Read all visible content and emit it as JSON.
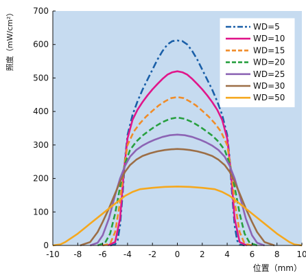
{
  "chart_data": {
    "type": "line",
    "title": "",
    "xlabel": "位置（mm）",
    "ylabel": "照度（mW/cm²）",
    "xlim": [
      -10,
      10
    ],
    "ylim": [
      0,
      700
    ],
    "xticks": [
      -10,
      -8,
      -6,
      -4,
      -2,
      0,
      2,
      4,
      6,
      8,
      10
    ],
    "yticks": [
      0,
      100,
      200,
      300,
      400,
      500,
      600,
      700
    ],
    "grid": false,
    "background": "#c6dbf0",
    "legend_position": "top-right",
    "series": [
      {
        "name": "WD=5",
        "color": "#1a5fa8",
        "dash": "dashdot",
        "x": [
          -5.4,
          -5,
          -4.8,
          -4.6,
          -4.4,
          -4.2,
          -4,
          -3.6,
          -3.2,
          -2.8,
          -2.4,
          -2,
          -1.6,
          -1.2,
          -0.8,
          -0.4,
          0,
          0.4,
          0.8,
          1.2,
          1.6,
          2,
          2.4,
          2.8,
          3.2,
          3.6,
          4,
          4.2,
          4.4,
          4.6,
          4.8,
          5,
          5.4
        ],
        "y": [
          0,
          3,
          15,
          60,
          150,
          260,
          330,
          390,
          430,
          465,
          495,
          525,
          555,
          580,
          600,
          610,
          612,
          610,
          600,
          580,
          555,
          525,
          495,
          465,
          430,
          390,
          330,
          260,
          150,
          60,
          15,
          3,
          0
        ]
      },
      {
        "name": "WD=10",
        "color": "#e0168a",
        "dash": "solid",
        "x": [
          -5.6,
          -5,
          -4.6,
          -4.3,
          -4,
          -3.6,
          -3.2,
          -2.8,
          -2.4,
          -2,
          -1.6,
          -1.2,
          -0.8,
          -0.4,
          0,
          0.4,
          0.8,
          1.2,
          1.6,
          2,
          2.4,
          2.8,
          3.2,
          3.6,
          4,
          4.3,
          4.6,
          5,
          5.6
        ],
        "y": [
          0,
          10,
          80,
          220,
          320,
          375,
          405,
          428,
          448,
          466,
          482,
          497,
          510,
          517,
          520,
          517,
          510,
          497,
          482,
          466,
          448,
          428,
          405,
          375,
          320,
          220,
          80,
          10,
          0
        ]
      },
      {
        "name": "WD=15",
        "color": "#f08c28",
        "dash": "dashed",
        "x": [
          -6,
          -5.4,
          -5,
          -4.6,
          -4.3,
          -4,
          -3.5,
          -3,
          -2.5,
          -2,
          -1.5,
          -1,
          -0.5,
          0,
          0.5,
          1,
          1.5,
          2,
          2.5,
          3,
          3.5,
          4,
          4.3,
          4.6,
          5,
          5.4,
          6
        ],
        "y": [
          0,
          5,
          40,
          130,
          230,
          300,
          340,
          365,
          385,
          402,
          418,
          430,
          440,
          443,
          440,
          430,
          418,
          402,
          385,
          365,
          340,
          300,
          230,
          130,
          40,
          5,
          0
        ]
      },
      {
        "name": "WD=20",
        "color": "#28a040",
        "dash": "dashed",
        "x": [
          -6.4,
          -5.8,
          -5.4,
          -5,
          -4.6,
          -4.2,
          -3.8,
          -3.3,
          -2.8,
          -2.3,
          -1.8,
          -1.2,
          -0.6,
          0,
          0.6,
          1.2,
          1.8,
          2.3,
          2.8,
          3.3,
          3.8,
          4.2,
          4.6,
          5,
          5.4,
          5.8,
          6.4
        ],
        "y": [
          0,
          8,
          35,
          95,
          175,
          245,
          285,
          310,
          328,
          342,
          355,
          368,
          378,
          382,
          378,
          368,
          355,
          342,
          328,
          310,
          285,
          245,
          175,
          95,
          35,
          8,
          0
        ]
      },
      {
        "name": "WD=25",
        "color": "#8c64b4",
        "dash": "solid",
        "x": [
          -7,
          -6.4,
          -6,
          -5.5,
          -5,
          -4.6,
          -4.2,
          -3.8,
          -3.3,
          -2.8,
          -2.3,
          -1.8,
          -1.2,
          -0.6,
          0,
          0.6,
          1.2,
          1.8,
          2.3,
          2.8,
          3.3,
          3.8,
          4.2,
          4.6,
          5,
          5.5,
          6,
          6.4,
          7
        ],
        "y": [
          0,
          8,
          30,
          80,
          150,
          200,
          238,
          265,
          285,
          298,
          308,
          316,
          324,
          329,
          331,
          329,
          324,
          316,
          308,
          298,
          285,
          265,
          238,
          200,
          150,
          80,
          30,
          8,
          0
        ]
      },
      {
        "name": "WD=30",
        "color": "#9c6e46",
        "dash": "solid",
        "x": [
          -7.8,
          -7,
          -6.4,
          -6,
          -5.5,
          -5,
          -4.6,
          -4.2,
          -3.8,
          -3.3,
          -2.8,
          -2.2,
          -1.6,
          -1,
          -0.5,
          0,
          0.5,
          1,
          1.6,
          2.2,
          2.8,
          3.3,
          3.8,
          4.2,
          4.6,
          5,
          5.5,
          6,
          6.4,
          7,
          7.8
        ],
        "y": [
          0,
          10,
          40,
          70,
          110,
          155,
          190,
          220,
          240,
          256,
          267,
          275,
          281,
          285,
          287,
          288,
          287,
          285,
          281,
          275,
          267,
          256,
          240,
          220,
          190,
          155,
          110,
          70,
          40,
          10,
          0
        ]
      },
      {
        "name": "WD=50",
        "color": "#f5a81e",
        "dash": "solid",
        "x": [
          -10,
          -9.4,
          -9,
          -8,
          -7,
          -6,
          -5,
          -4.2,
          -3.6,
          -3,
          -2,
          -1,
          0,
          1,
          2,
          3,
          3.6,
          4.2,
          5,
          6,
          7,
          8,
          9,
          9.4,
          10
        ],
        "y": [
          0,
          3,
          10,
          35,
          65,
          95,
          125,
          148,
          160,
          168,
          172,
          175,
          176,
          175,
          172,
          168,
          160,
          148,
          125,
          95,
          65,
          35,
          10,
          3,
          0
        ]
      }
    ]
  }
}
